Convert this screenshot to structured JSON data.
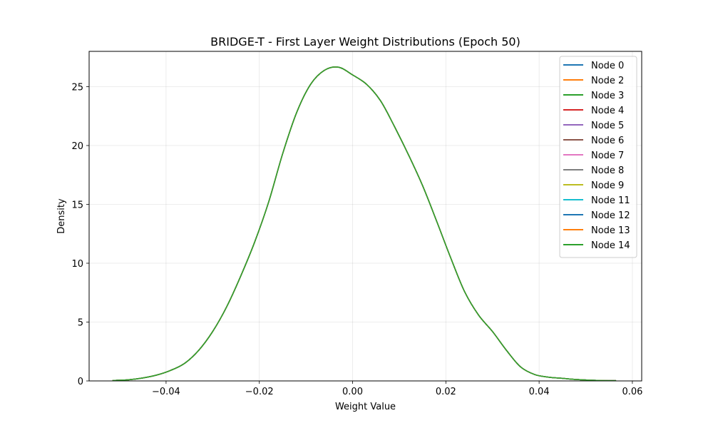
{
  "chart_data": {
    "type": "line",
    "title": "BRIDGE-T - First Layer Weight Distributions (Epoch 50)",
    "xlabel": "Weight Value",
    "ylabel": "Density",
    "xlim": [
      -0.0565,
      0.062
    ],
    "ylim": [
      0,
      28
    ],
    "xticks": [
      -0.04,
      -0.02,
      0.0,
      0.02,
      0.04,
      0.06
    ],
    "xtick_labels": [
      "−0.04",
      "−0.02",
      "0.00",
      "0.02",
      "0.04",
      "0.06"
    ],
    "yticks": [
      0,
      5,
      10,
      15,
      20,
      25
    ],
    "ytick_labels": [
      "0",
      "5",
      "10",
      "15",
      "20",
      "25"
    ],
    "grid": true,
    "legend_position": "top-right",
    "x": [
      -0.0515,
      -0.048,
      -0.045,
      -0.042,
      -0.039,
      -0.036,
      -0.033,
      -0.03,
      -0.027,
      -0.024,
      -0.021,
      -0.018,
      -0.015,
      -0.012,
      -0.009,
      -0.006,
      -0.003,
      0.0,
      0.003,
      0.006,
      0.009,
      0.012,
      0.015,
      0.018,
      0.021,
      0.024,
      0.027,
      0.03,
      0.033,
      0.036,
      0.039,
      0.042,
      0.045,
      0.048,
      0.051,
      0.054,
      0.0565
    ],
    "series": [
      {
        "name": "Node 0",
        "color": "#1f77b4",
        "values": [
          0.04,
          0.1,
          0.25,
          0.5,
          0.9,
          1.5,
          2.6,
          4.2,
          6.3,
          8.9,
          11.8,
          15.2,
          19.3,
          22.8,
          25.2,
          26.4,
          26.65,
          26.0,
          25.2,
          23.8,
          21.6,
          19.2,
          16.6,
          13.6,
          10.5,
          7.6,
          5.6,
          4.2,
          2.6,
          1.2,
          0.55,
          0.32,
          0.22,
          0.12,
          0.06,
          0.03,
          0.02
        ]
      },
      {
        "name": "Node 2",
        "color": "#ff7f0e",
        "values": [
          0.04,
          0.1,
          0.25,
          0.5,
          0.9,
          1.5,
          2.6,
          4.2,
          6.3,
          8.9,
          11.8,
          15.2,
          19.3,
          22.8,
          25.2,
          26.4,
          26.65,
          26.0,
          25.2,
          23.8,
          21.6,
          19.2,
          16.6,
          13.6,
          10.5,
          7.6,
          5.6,
          4.2,
          2.6,
          1.2,
          0.55,
          0.32,
          0.22,
          0.12,
          0.06,
          0.03,
          0.02
        ]
      },
      {
        "name": "Node 3",
        "color": "#2ca02c",
        "values": [
          0.04,
          0.1,
          0.25,
          0.5,
          0.9,
          1.5,
          2.6,
          4.2,
          6.3,
          8.9,
          11.8,
          15.2,
          19.3,
          22.8,
          25.2,
          26.4,
          26.65,
          26.0,
          25.2,
          23.8,
          21.6,
          19.2,
          16.6,
          13.6,
          10.5,
          7.6,
          5.6,
          4.2,
          2.6,
          1.2,
          0.55,
          0.32,
          0.22,
          0.12,
          0.06,
          0.03,
          0.02
        ]
      },
      {
        "name": "Node 4",
        "color": "#d62728",
        "values": [
          0.04,
          0.1,
          0.25,
          0.5,
          0.9,
          1.5,
          2.6,
          4.2,
          6.3,
          8.9,
          11.8,
          15.2,
          19.3,
          22.8,
          25.2,
          26.4,
          26.65,
          26.0,
          25.2,
          23.8,
          21.6,
          19.2,
          16.6,
          13.6,
          10.5,
          7.6,
          5.6,
          4.2,
          2.6,
          1.2,
          0.55,
          0.32,
          0.22,
          0.12,
          0.06,
          0.03,
          0.02
        ]
      },
      {
        "name": "Node 5",
        "color": "#9467bd",
        "values": [
          0.04,
          0.1,
          0.25,
          0.5,
          0.9,
          1.5,
          2.6,
          4.2,
          6.3,
          8.9,
          11.8,
          15.2,
          19.3,
          22.8,
          25.2,
          26.4,
          26.65,
          26.0,
          25.2,
          23.8,
          21.6,
          19.2,
          16.6,
          13.6,
          10.5,
          7.6,
          5.6,
          4.2,
          2.6,
          1.2,
          0.55,
          0.32,
          0.22,
          0.12,
          0.06,
          0.03,
          0.02
        ]
      },
      {
        "name": "Node 6",
        "color": "#8c564b",
        "values": [
          0.04,
          0.1,
          0.25,
          0.5,
          0.9,
          1.5,
          2.6,
          4.2,
          6.3,
          8.9,
          11.8,
          15.2,
          19.3,
          22.8,
          25.2,
          26.4,
          26.65,
          26.0,
          25.2,
          23.8,
          21.6,
          19.2,
          16.6,
          13.6,
          10.5,
          7.6,
          5.6,
          4.2,
          2.6,
          1.2,
          0.55,
          0.32,
          0.22,
          0.12,
          0.06,
          0.03,
          0.02
        ]
      },
      {
        "name": "Node 7",
        "color": "#e377c2",
        "values": [
          0.04,
          0.1,
          0.25,
          0.5,
          0.9,
          1.5,
          2.6,
          4.2,
          6.3,
          8.9,
          11.8,
          15.2,
          19.3,
          22.8,
          25.2,
          26.4,
          26.65,
          26.0,
          25.2,
          23.8,
          21.6,
          19.2,
          16.6,
          13.6,
          10.5,
          7.6,
          5.6,
          4.2,
          2.6,
          1.2,
          0.55,
          0.32,
          0.22,
          0.12,
          0.06,
          0.03,
          0.02
        ]
      },
      {
        "name": "Node 8",
        "color": "#7f7f7f",
        "values": [
          0.04,
          0.1,
          0.25,
          0.5,
          0.9,
          1.5,
          2.6,
          4.2,
          6.3,
          8.9,
          11.8,
          15.2,
          19.3,
          22.8,
          25.2,
          26.4,
          26.65,
          26.0,
          25.2,
          23.8,
          21.6,
          19.2,
          16.6,
          13.6,
          10.5,
          7.6,
          5.6,
          4.2,
          2.6,
          1.2,
          0.55,
          0.32,
          0.22,
          0.12,
          0.06,
          0.03,
          0.02
        ]
      },
      {
        "name": "Node 9",
        "color": "#bcbd22",
        "values": [
          0.04,
          0.1,
          0.25,
          0.5,
          0.9,
          1.5,
          2.6,
          4.2,
          6.3,
          8.9,
          11.8,
          15.2,
          19.3,
          22.8,
          25.2,
          26.4,
          26.65,
          26.0,
          25.2,
          23.8,
          21.6,
          19.2,
          16.6,
          13.6,
          10.5,
          7.6,
          5.6,
          4.2,
          2.6,
          1.2,
          0.55,
          0.32,
          0.22,
          0.12,
          0.06,
          0.03,
          0.02
        ]
      },
      {
        "name": "Node 11",
        "color": "#17becf",
        "values": [
          0.04,
          0.1,
          0.25,
          0.5,
          0.9,
          1.5,
          2.6,
          4.2,
          6.3,
          8.9,
          11.8,
          15.2,
          19.3,
          22.8,
          25.2,
          26.4,
          26.65,
          26.0,
          25.2,
          23.8,
          21.6,
          19.2,
          16.6,
          13.6,
          10.5,
          7.6,
          5.6,
          4.2,
          2.6,
          1.2,
          0.55,
          0.32,
          0.22,
          0.12,
          0.06,
          0.03,
          0.02
        ]
      },
      {
        "name": "Node 12",
        "color": "#1f77b4",
        "values": [
          0.04,
          0.1,
          0.25,
          0.5,
          0.9,
          1.5,
          2.6,
          4.2,
          6.3,
          8.9,
          11.8,
          15.2,
          19.3,
          22.8,
          25.2,
          26.4,
          26.65,
          26.0,
          25.2,
          23.8,
          21.6,
          19.2,
          16.6,
          13.6,
          10.5,
          7.6,
          5.6,
          4.2,
          2.6,
          1.2,
          0.55,
          0.32,
          0.22,
          0.12,
          0.06,
          0.03,
          0.02
        ]
      },
      {
        "name": "Node 13",
        "color": "#ff7f0e",
        "values": [
          0.04,
          0.1,
          0.25,
          0.5,
          0.9,
          1.5,
          2.6,
          4.2,
          6.3,
          8.9,
          11.8,
          15.2,
          19.3,
          22.8,
          25.2,
          26.4,
          26.65,
          26.0,
          25.2,
          23.8,
          21.6,
          19.2,
          16.6,
          13.6,
          10.5,
          7.6,
          5.6,
          4.2,
          2.6,
          1.2,
          0.55,
          0.32,
          0.22,
          0.12,
          0.06,
          0.03,
          0.02
        ]
      },
      {
        "name": "Node 14",
        "color": "#2ca02c",
        "values": [
          0.04,
          0.1,
          0.25,
          0.5,
          0.9,
          1.5,
          2.6,
          4.2,
          6.3,
          8.9,
          11.8,
          15.2,
          19.3,
          22.8,
          25.2,
          26.4,
          26.65,
          26.0,
          25.2,
          23.8,
          21.6,
          19.2,
          16.6,
          13.6,
          10.5,
          7.6,
          5.6,
          4.2,
          2.6,
          1.2,
          0.55,
          0.32,
          0.22,
          0.12,
          0.06,
          0.03,
          0.02
        ]
      }
    ]
  }
}
